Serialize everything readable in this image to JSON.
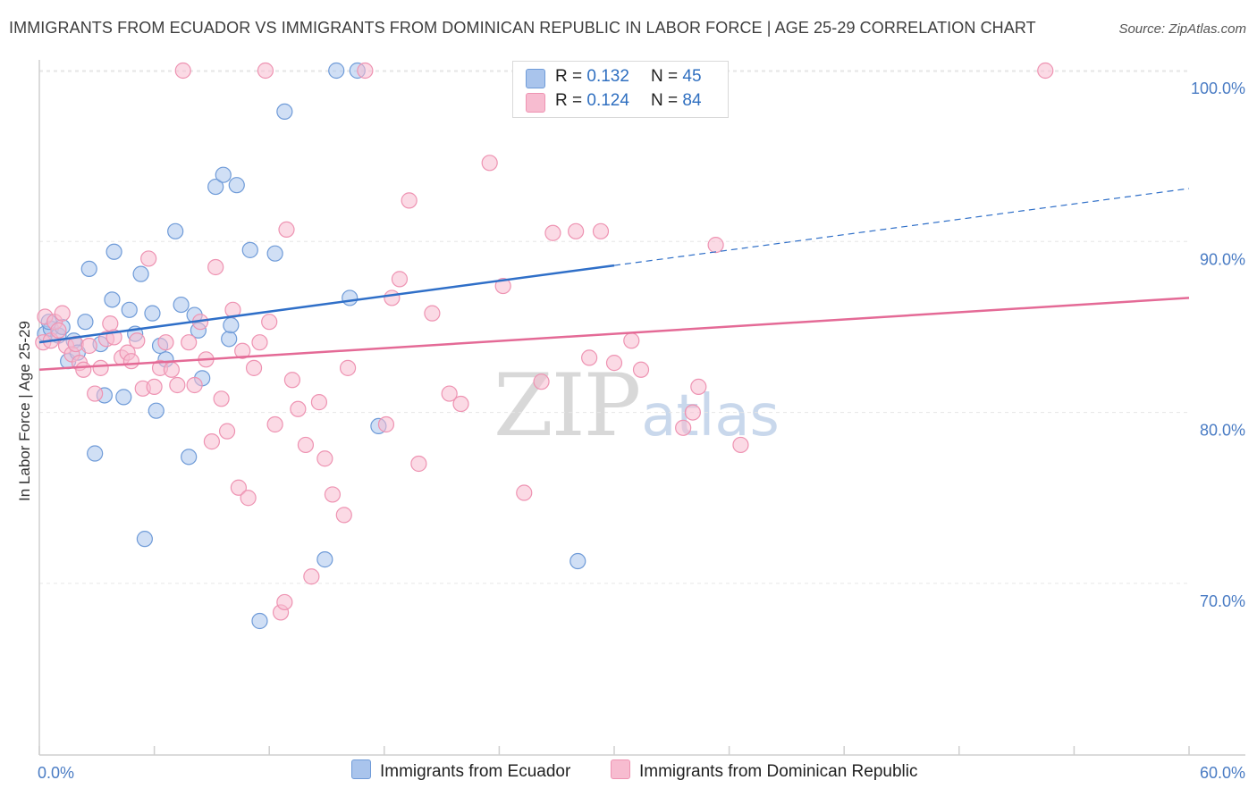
{
  "title": "IMMIGRANTS FROM ECUADOR VS IMMIGRANTS FROM DOMINICAN REPUBLIC IN LABOR FORCE | AGE 25-29 CORRELATION CHART",
  "source": "Source: ZipAtlas.com",
  "watermark": {
    "zip": "ZIP",
    "atlas": "atlas"
  },
  "legend_top": [
    {
      "r_label": "R =",
      "r_value": "0.132",
      "n_label": "N =",
      "n_value": "45"
    },
    {
      "r_label": "R =",
      "r_value": "0.124",
      "n_label": "N =",
      "n_value": "84"
    }
  ],
  "legend_bottom": [
    "Immigrants from Ecuador",
    "Immigrants from Dominican Republic"
  ],
  "colors": {
    "ecuador_fill": "#a9c4ec",
    "ecuador_stroke": "#6f9bd8",
    "ecuador_line": "#2f6fc8",
    "dr_fill": "#f7bcd0",
    "dr_stroke": "#ee93b2",
    "dr_line": "#e46a96",
    "axis_label": "#4a7cc4",
    "grid": "#e6e6e6"
  },
  "chart_data": {
    "type": "scatter",
    "title": "IMMIGRANTS FROM ECUADOR VS IMMIGRANTS FROM DOMINICAN REPUBLIC IN LABOR FORCE | AGE 25-29 CORRELATION CHART",
    "xlabel": "",
    "ylabel": "In Labor Force | Age 25-29",
    "xlim": [
      0,
      60
    ],
    "ylim": [
      59,
      102
    ],
    "x_tick_labels": [
      "0.0%",
      "60.0%"
    ],
    "y_ticks": [
      70,
      80,
      90,
      100
    ],
    "y_tick_labels": [
      "70.0%",
      "80.0%",
      "90.0%",
      "100.0%"
    ],
    "grid": "horizontal dashed",
    "legend_position": "top-center",
    "series": [
      {
        "name": "Immigrants from Ecuador",
        "R": 0.132,
        "N": 45,
        "trend": {
          "x_start": 0,
          "y_start": 84.1,
          "x_solid_end": 30,
          "y_solid_end": 88.6,
          "x_dash_end": 60,
          "y_dash_end": 93.1
        },
        "points": [
          [
            0.3,
            84.6
          ],
          [
            0.6,
            84.9
          ],
          [
            0.5,
            85.3
          ],
          [
            1.0,
            84.5
          ],
          [
            1.2,
            85.0
          ],
          [
            1.5,
            83.0
          ],
          [
            1.8,
            84.2
          ],
          [
            2.0,
            83.5
          ],
          [
            2.4,
            85.3
          ],
          [
            2.6,
            88.4
          ],
          [
            2.9,
            77.6
          ],
          [
            3.4,
            81.0
          ],
          [
            3.9,
            89.4
          ],
          [
            3.8,
            86.6
          ],
          [
            4.4,
            80.9
          ],
          [
            4.7,
            86.0
          ],
          [
            5.0,
            84.6
          ],
          [
            5.3,
            88.1
          ],
          [
            5.5,
            72.6
          ],
          [
            5.9,
            85.8
          ],
          [
            6.1,
            80.1
          ],
          [
            6.3,
            83.9
          ],
          [
            6.6,
            83.1
          ],
          [
            7.1,
            90.6
          ],
          [
            7.4,
            86.3
          ],
          [
            7.8,
            77.4
          ],
          [
            8.1,
            85.7
          ],
          [
            8.3,
            84.8
          ],
          [
            8.5,
            82.0
          ],
          [
            9.2,
            93.2
          ],
          [
            9.6,
            93.9
          ],
          [
            9.9,
            84.3
          ],
          [
            10.0,
            85.1
          ],
          [
            10.3,
            93.3
          ],
          [
            11.0,
            89.5
          ],
          [
            11.5,
            67.8
          ],
          [
            12.3,
            89.3
          ],
          [
            12.8,
            97.6
          ],
          [
            14.9,
            71.4
          ],
          [
            15.5,
            100.0
          ],
          [
            16.2,
            86.7
          ],
          [
            16.6,
            100.0
          ],
          [
            17.7,
            79.2
          ],
          [
            28.1,
            71.3
          ],
          [
            3.2,
            84.0
          ]
        ]
      },
      {
        "name": "Immigrants from Dominican Republic",
        "R": 0.124,
        "N": 84,
        "trend": {
          "x_start": 0,
          "y_start": 82.5,
          "x_end": 60,
          "y_end": 86.7
        },
        "points": [
          [
            0.2,
            84.1
          ],
          [
            0.3,
            85.6
          ],
          [
            0.6,
            84.2
          ],
          [
            0.8,
            85.3
          ],
          [
            1.0,
            84.8
          ],
          [
            1.2,
            85.8
          ],
          [
            1.4,
            83.9
          ],
          [
            1.7,
            83.4
          ],
          [
            1.9,
            84.0
          ],
          [
            2.1,
            82.9
          ],
          [
            2.3,
            82.5
          ],
          [
            2.6,
            83.9
          ],
          [
            2.9,
            81.1
          ],
          [
            3.2,
            82.6
          ],
          [
            3.5,
            84.3
          ],
          [
            3.7,
            85.2
          ],
          [
            3.9,
            84.4
          ],
          [
            4.3,
            83.2
          ],
          [
            4.6,
            83.5
          ],
          [
            4.8,
            83.0
          ],
          [
            5.1,
            84.2
          ],
          [
            5.4,
            81.4
          ],
          [
            5.7,
            89.0
          ],
          [
            6.0,
            81.5
          ],
          [
            6.3,
            82.6
          ],
          [
            6.6,
            84.1
          ],
          [
            6.9,
            82.5
          ],
          [
            7.2,
            81.6
          ],
          [
            7.5,
            100.0
          ],
          [
            7.8,
            84.1
          ],
          [
            8.1,
            81.6
          ],
          [
            8.4,
            85.3
          ],
          [
            8.7,
            83.1
          ],
          [
            9.0,
            78.3
          ],
          [
            9.2,
            88.5
          ],
          [
            9.5,
            80.8
          ],
          [
            9.8,
            78.9
          ],
          [
            10.1,
            86.0
          ],
          [
            10.4,
            75.6
          ],
          [
            10.6,
            83.6
          ],
          [
            10.9,
            75.0
          ],
          [
            11.2,
            82.6
          ],
          [
            11.5,
            84.1
          ],
          [
            11.8,
            100.0
          ],
          [
            12.0,
            85.3
          ],
          [
            12.3,
            79.3
          ],
          [
            12.6,
            68.3
          ],
          [
            12.9,
            90.7
          ],
          [
            13.2,
            81.9
          ],
          [
            13.5,
            80.2
          ],
          [
            13.9,
            78.1
          ],
          [
            14.2,
            70.4
          ],
          [
            14.6,
            80.6
          ],
          [
            14.9,
            77.3
          ],
          [
            15.3,
            75.2
          ],
          [
            15.9,
            74.0
          ],
          [
            16.1,
            82.6
          ],
          [
            17.0,
            100.0
          ],
          [
            18.1,
            79.3
          ],
          [
            18.4,
            86.7
          ],
          [
            18.8,
            87.8
          ],
          [
            19.3,
            92.4
          ],
          [
            19.8,
            77.0
          ],
          [
            20.5,
            85.8
          ],
          [
            21.4,
            81.1
          ],
          [
            22.0,
            80.5
          ],
          [
            23.5,
            94.6
          ],
          [
            24.2,
            87.4
          ],
          [
            25.3,
            75.3
          ],
          [
            26.2,
            81.8
          ],
          [
            26.8,
            90.5
          ],
          [
            28.0,
            90.6
          ],
          [
            29.3,
            90.6
          ],
          [
            28.7,
            83.2
          ],
          [
            30.0,
            82.9
          ],
          [
            30.9,
            84.2
          ],
          [
            31.4,
            82.5
          ],
          [
            33.6,
            79.1
          ],
          [
            34.1,
            80.0
          ],
          [
            34.4,
            81.5
          ],
          [
            35.3,
            89.8
          ],
          [
            36.6,
            78.1
          ],
          [
            52.5,
            100.0
          ],
          [
            12.8,
            68.9
          ]
        ]
      }
    ]
  }
}
